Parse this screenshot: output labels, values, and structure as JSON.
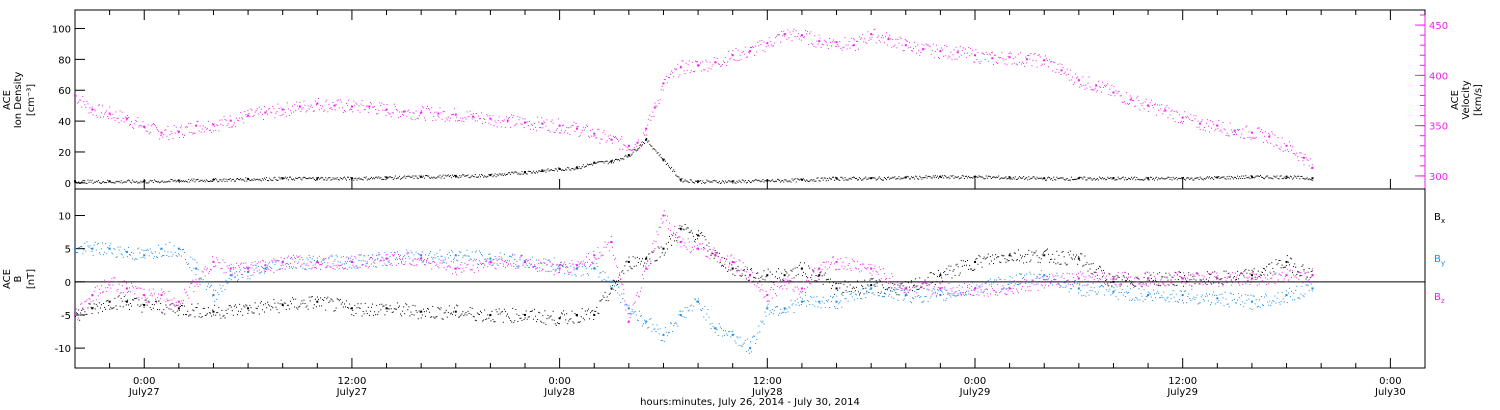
{
  "colors": {
    "axis": "#000000",
    "density": "#000000",
    "velocity": "#ee22ee",
    "bx": "#000000",
    "by": "#1a8ce6",
    "bz": "#ee22ee"
  },
  "figure": {
    "xlabel": "hours:minutes, July 26, 2014 - July 30, 2014",
    "x_range_hours": [
      -4.0,
      74.0
    ],
    "x_ticks": [
      {
        "hours": 0,
        "time": "0:00",
        "date": "July27"
      },
      {
        "hours": 12,
        "time": "12:00",
        "date": "July27"
      },
      {
        "hours": 24,
        "time": "0:00",
        "date": "July28"
      },
      {
        "hours": 36,
        "time": "12:00",
        "date": "July28"
      },
      {
        "hours": 48,
        "time": "0:00",
        "date": "July29"
      },
      {
        "hours": 60,
        "time": "12:00",
        "date": "July29"
      },
      {
        "hours": 72,
        "time": "0:00",
        "date": "July30"
      }
    ]
  },
  "chart_data": [
    {
      "type": "scatter",
      "panel": "top",
      "ylabel_left": [
        "ACE",
        "Ion Density",
        "[cm⁻³]"
      ],
      "ylabel_right": [
        "ACE",
        "Velocity",
        "[km/s]"
      ],
      "ylim_left": [
        -4,
        112
      ],
      "yticks_left": [
        0,
        20,
        40,
        60,
        80,
        100
      ],
      "ylim_right": [
        287,
        465
      ],
      "yticks_right": [
        300,
        350,
        400,
        450
      ],
      "series": [
        {
          "axis": "left",
          "color": "density",
          "x": [
            -4,
            -2,
            0,
            2,
            4,
            6,
            8,
            10,
            12,
            14,
            16,
            18,
            20,
            22,
            23,
            24,
            25,
            26,
            27,
            28,
            29,
            30,
            31,
            32,
            34,
            36,
            38,
            40,
            42,
            44,
            46,
            48,
            50,
            52,
            54,
            56,
            58,
            60,
            62,
            64,
            66,
            67.5
          ],
          "y": [
            1,
            1,
            1,
            1.5,
            2,
            2.5,
            3,
            3,
            3,
            3.5,
            4,
            4.5,
            5,
            7,
            8,
            9,
            10,
            13,
            14,
            18,
            28,
            15,
            2,
            1,
            1,
            1.5,
            2,
            3,
            3,
            3.5,
            4,
            4,
            3.5,
            3,
            3,
            3,
            3,
            3,
            3.5,
            4,
            4,
            3
          ]
        },
        {
          "axis": "right",
          "color": "velocity",
          "x": [
            -4,
            -3,
            -2,
            -1,
            0,
            1,
            2,
            3,
            4,
            5,
            6,
            7,
            8,
            9,
            10,
            11,
            12,
            13,
            14,
            15,
            16,
            17,
            18,
            19,
            20,
            21,
            22,
            23,
            24,
            25,
            26,
            27,
            28,
            28.5,
            29,
            29.5,
            30,
            31,
            32,
            33,
            34,
            35,
            36,
            37,
            38,
            39,
            40,
            41,
            42,
            43,
            44,
            45,
            46,
            47,
            48,
            49,
            50,
            51,
            52,
            53,
            54,
            55,
            56,
            57,
            58,
            59,
            60,
            61,
            62,
            63,
            64,
            65,
            66,
            67,
            67.5
          ],
          "y": [
            380,
            366,
            362,
            357,
            349,
            343,
            344,
            350,
            351,
            355,
            360,
            363,
            366,
            369,
            372,
            370,
            369,
            369,
            366,
            364,
            363,
            362,
            361,
            359,
            357,
            355,
            353,
            352,
            350,
            347,
            342,
            336,
            330,
            333,
            347,
            368,
            392,
            408,
            410,
            413,
            420,
            424,
            432,
            441,
            440,
            434,
            433,
            430,
            441,
            436,
            430,
            426,
            424,
            423,
            420,
            417,
            418,
            416,
            415,
            405,
            395,
            390,
            383,
            376,
            370,
            365,
            358,
            352,
            350,
            345,
            343,
            339,
            330,
            318,
            308
          ]
        }
      ]
    },
    {
      "type": "scatter",
      "panel": "bottom",
      "ylabel_left": [
        "ACE",
        "B",
        "[nT]"
      ],
      "ylim": [
        -13,
        14
      ],
      "yticks": [
        -10,
        -5,
        0,
        5,
        10
      ],
      "zero_line": true,
      "legend": [
        {
          "label": "B",
          "sub": "x",
          "color": "bx"
        },
        {
          "label": "B",
          "sub": "y",
          "color": "by"
        },
        {
          "label": "B",
          "sub": "z",
          "color": "bz"
        }
      ],
      "series": [
        {
          "name": "Bx",
          "color": "bx",
          "x": [
            -4,
            -3,
            -2,
            -1,
            0,
            2,
            4,
            6,
            8,
            10,
            12,
            14,
            16,
            18,
            20,
            22,
            24,
            25,
            26,
            27,
            28,
            29,
            30,
            31,
            32,
            33,
            34,
            35,
            36,
            37,
            38,
            39,
            40,
            42,
            44,
            46,
            48,
            50,
            52,
            54,
            56,
            58,
            60,
            62,
            64,
            66,
            67.5
          ],
          "y": [
            -5,
            -4,
            -3,
            -3,
            -3.5,
            -4,
            -4.5,
            -4,
            -3.5,
            -3,
            -4,
            -4,
            -4.5,
            -4.5,
            -5,
            -5,
            -5.5,
            -5,
            -5,
            -1,
            3,
            3.5,
            5,
            8,
            7,
            4,
            2,
            1,
            1,
            1,
            2,
            1,
            -1,
            -0.5,
            -1,
            1,
            3,
            4,
            4,
            3.5,
            0,
            0.5,
            0.5,
            0.5,
            1,
            3,
            1
          ]
        },
        {
          "name": "By",
          "color": "by",
          "x": [
            -4,
            -3,
            -2,
            -1,
            0,
            1,
            2,
            3,
            4,
            5,
            6,
            7,
            8,
            10,
            12,
            14,
            16,
            18,
            20,
            22,
            24,
            25,
            26,
            27,
            28,
            29,
            30,
            31,
            32,
            33,
            34,
            35,
            36,
            37,
            38,
            39,
            40,
            42,
            44,
            46,
            48,
            50,
            52,
            54,
            56,
            58,
            60,
            62,
            64,
            66,
            67.5
          ],
          "y": [
            5,
            5,
            5,
            4.5,
            4,
            5,
            5,
            2,
            -2,
            1,
            1.5,
            2,
            3,
            3,
            3,
            3.5,
            4,
            4,
            3.5,
            3,
            2.5,
            2,
            2,
            0,
            -4,
            -6,
            -8,
            -5,
            -3,
            -7,
            -8,
            -10,
            -4,
            -4,
            -3,
            -3,
            -3,
            -1,
            -2,
            -2,
            -1,
            0,
            1,
            -1,
            -1.5,
            -2,
            -2,
            -2.5,
            -3,
            -2,
            -1
          ]
        },
        {
          "name": "Bz",
          "color": "bz",
          "x": [
            -4,
            -3,
            -2,
            -1,
            0,
            1,
            2,
            3,
            4,
            5,
            6,
            7,
            8,
            10,
            12,
            14,
            16,
            18,
            20,
            22,
            24,
            25,
            26,
            27,
            28,
            29,
            30,
            31,
            32,
            33,
            34,
            35,
            36,
            37,
            38,
            39,
            40,
            42,
            44,
            46,
            48,
            50,
            52,
            54,
            56,
            58,
            60,
            62,
            64,
            66,
            67.5
          ],
          "y": [
            -5,
            -2,
            0,
            -1,
            -2,
            -2,
            -3,
            0,
            3,
            2,
            2,
            2.5,
            3,
            3,
            3,
            3.5,
            3.5,
            2,
            3,
            3,
            2,
            2.5,
            4,
            6,
            -6,
            2,
            10,
            6,
            5,
            4,
            3,
            1,
            -2,
            0,
            -1,
            2,
            3,
            2,
            -1,
            -1,
            -1,
            -1,
            0,
            0.5,
            0.5,
            0.5,
            0.5,
            0.5,
            0.5,
            1,
            1
          ]
        }
      ]
    }
  ]
}
